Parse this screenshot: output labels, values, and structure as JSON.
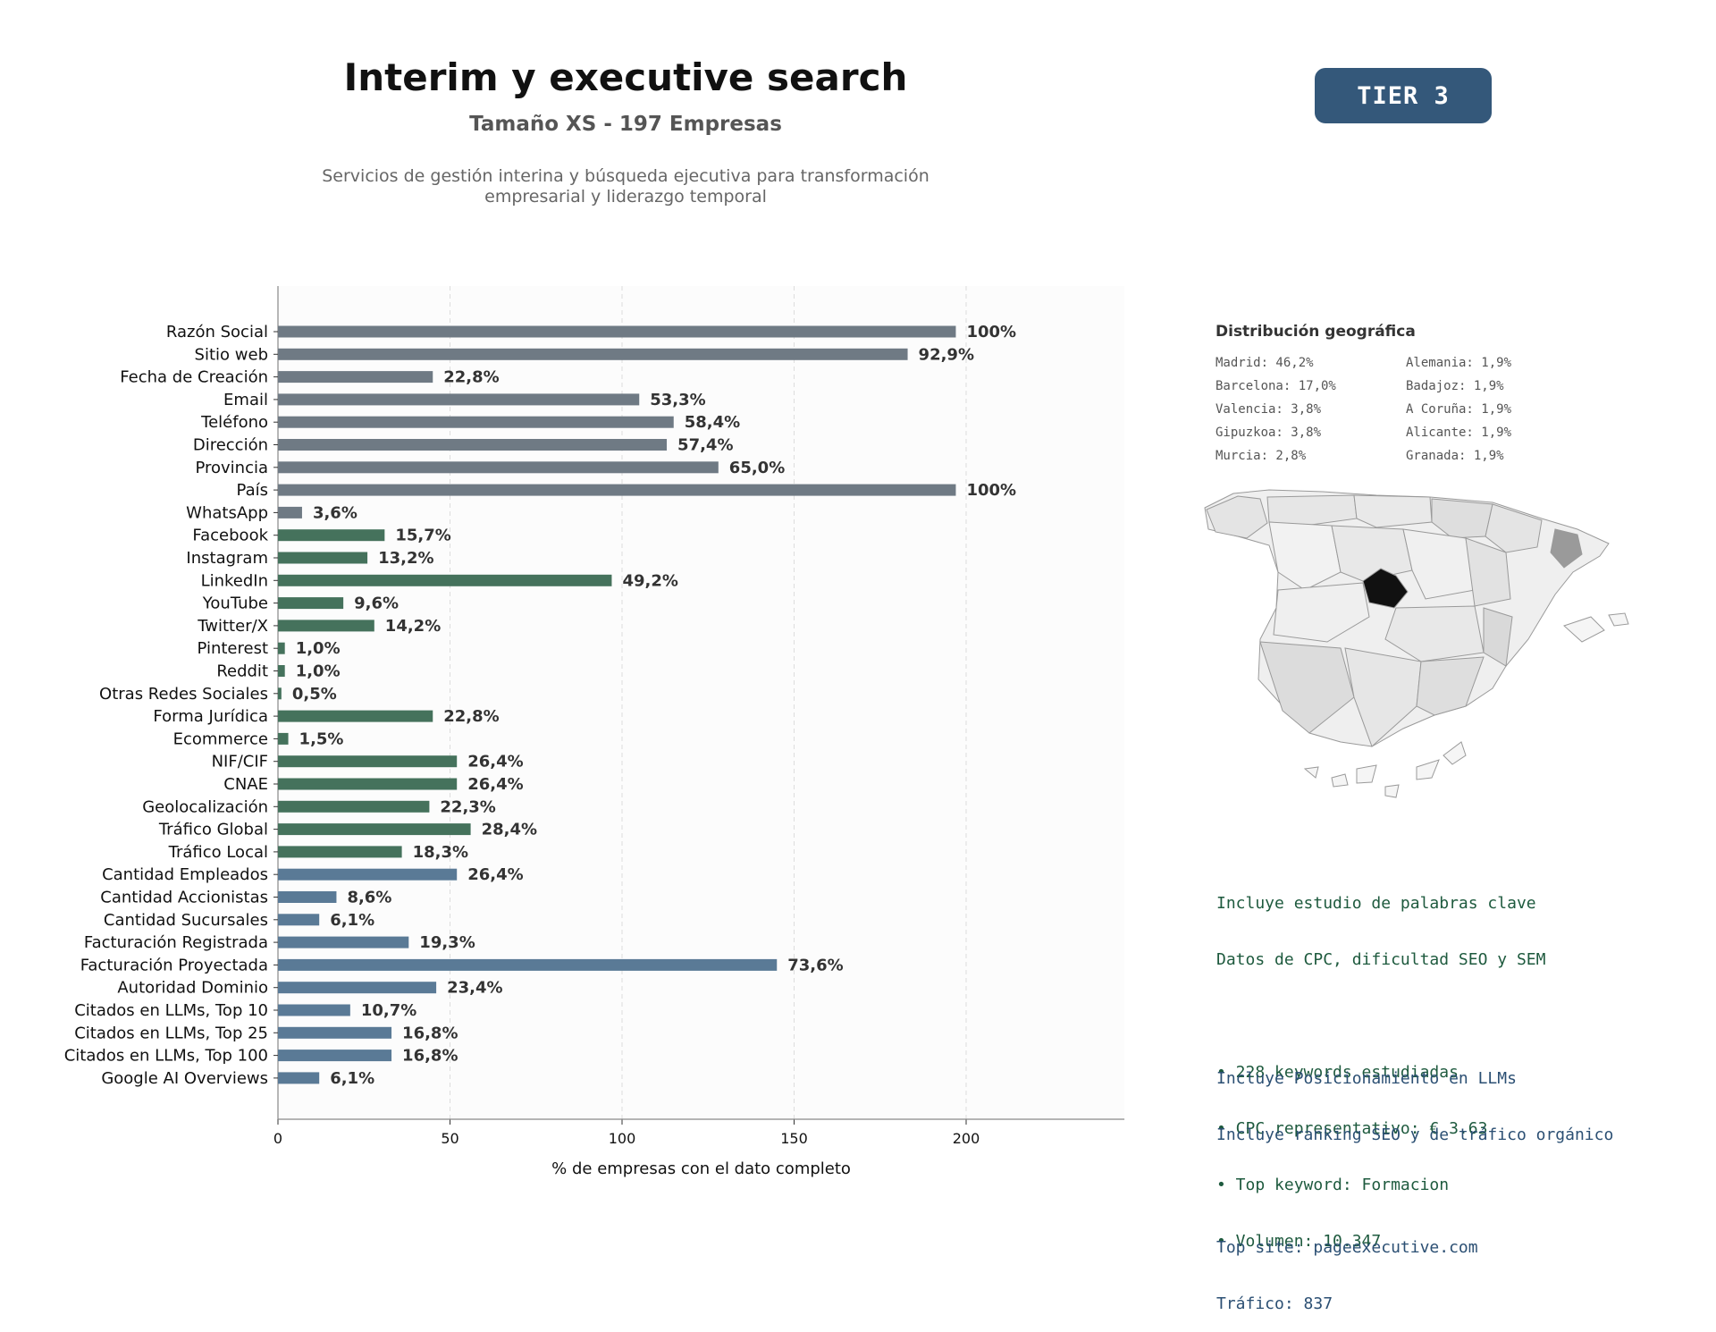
{
  "header": {
    "title": "Interim y executive search",
    "subtitle": "Tamaño XS - 197 Empresas",
    "description_line1": "Servicios de gestión interina y búsqueda ejecutiva para transformación",
    "description_line2": "empresarial y liderazgo temporal",
    "tier_label": "TIER 3",
    "tier_color": "#34587a"
  },
  "chart_data": {
    "type": "bar",
    "orientation": "horizontal",
    "xlabel": "% de empresas con el dato completo",
    "xlim": [
      0,
      246
    ],
    "xticks": [
      0,
      50,
      100,
      150,
      200
    ],
    "grid": "vertical dashed",
    "categories": [
      "Razón Social",
      "Sitio web",
      "Fecha de Creación",
      "Email",
      "Teléfono",
      "Dirección",
      "Provincia",
      "País",
      "WhatsApp",
      "Facebook",
      "Instagram",
      "LinkedIn",
      "YouTube",
      "Twitter/X",
      "Pinterest",
      "Reddit",
      "Otras Redes Sociales",
      "Forma Jurídica",
      "Ecommerce",
      "NIF/CIF",
      "CNAE",
      "Geolocalización",
      "Tráfico Global",
      "Tráfico Local",
      "Cantidad Empleados",
      "Cantidad Accionistas",
      "Cantidad Sucursales",
      "Facturación Registrada",
      "Facturación Proyectada",
      "Autoridad Dominio",
      "Citados en LLMs, Top 10",
      "Citados en LLMs, Top 25",
      "Citados en LLMs, Top 100",
      "Google AI Overviews"
    ],
    "values": [
      197,
      183,
      45,
      105,
      115,
      113,
      128,
      197,
      7,
      31,
      26,
      97,
      19,
      28,
      2,
      2,
      1,
      45,
      3,
      52,
      52,
      44,
      56,
      36,
      52,
      17,
      12,
      38,
      145,
      46,
      21,
      33,
      33,
      12
    ],
    "labels": [
      "100%",
      "92,9%",
      "22,8%",
      "53,3%",
      "58,4%",
      "57,4%",
      "65,0%",
      "100%",
      "3,6%",
      "15,7%",
      "13,2%",
      "49,2%",
      "9,6%",
      "14,2%",
      "1,0%",
      "1,0%",
      "0,5%",
      "22,8%",
      "1,5%",
      "26,4%",
      "26,4%",
      "22,3%",
      "28,4%",
      "18,3%",
      "26,4%",
      "8,6%",
      "6,1%",
      "19,3%",
      "73,6%",
      "23,4%",
      "10,7%",
      "16,8%",
      "16,8%",
      "6,1%"
    ],
    "groups": [
      0,
      0,
      0,
      0,
      0,
      0,
      0,
      0,
      0,
      1,
      1,
      1,
      1,
      1,
      1,
      1,
      1,
      1,
      1,
      1,
      1,
      1,
      1,
      1,
      2,
      2,
      2,
      2,
      2,
      2,
      2,
      2,
      2,
      2
    ],
    "group_colors": [
      "#6f7a84",
      "#45725c",
      "#5a7a96"
    ]
  },
  "geo": {
    "title": "Distribución geográfica",
    "items": [
      "Madrid: 46,2%",
      "Alemania: 1,9%",
      "Barcelona: 17,0%",
      "Badajoz: 1,9%",
      "Valencia: 3,8%",
      "A Coruña: 1,9%",
      "Gipuzkoa: 3,8%",
      "Alicante: 1,9%",
      "Murcia: 2,8%",
      "Granada: 1,9%"
    ]
  },
  "keywords": {
    "line1": "Incluye estudio de palabras clave",
    "line2": "Datos de CPC, dificultad SEO y SEM",
    "b1": "• 228 keywords estudiadas",
    "b2": "• CPC representativo: € 3.63",
    "b3": "• Top keyword: Formacion",
    "b4": "• Volumen: 10.347"
  },
  "llm": {
    "line1": "Incluye Posicionamiento en LLMs",
    "line2": "Incluye ranking SEO y de tráfico orgánico",
    "line3": "Top site: pageexecutive.com",
    "line4": "Tráfico: 837"
  }
}
